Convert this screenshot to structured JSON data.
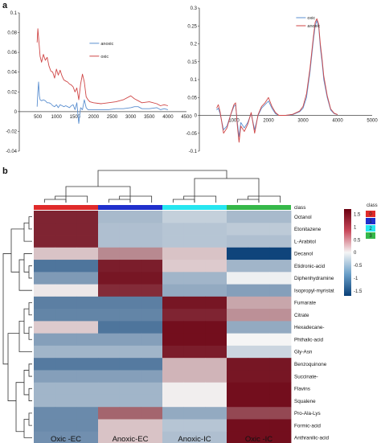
{
  "panels": {
    "a": "a",
    "b": "b"
  },
  "chart_data": [
    {
      "type": "line",
      "panel": "a-left",
      "xticks": [
        "500",
        "1000",
        "1500",
        "2000",
        "2500",
        "3000",
        "3500",
        "4000",
        "4500"
      ],
      "yticks": [
        "0.1",
        "0.08",
        "0.06",
        "0.04",
        "0.02",
        "0",
        "-0.02",
        "-0.04"
      ],
      "xlim": [
        0,
        4500
      ],
      "ylim": [
        -0.04,
        0.1
      ],
      "legend_pos": "top-right",
      "series": [
        {
          "name": "anoxic",
          "color": "#5b8fd0",
          "x": [
            480,
            500,
            520,
            540,
            560,
            600,
            650,
            700,
            750,
            800,
            850,
            900,
            950,
            1000,
            1050,
            1100,
            1150,
            1200,
            1250,
            1300,
            1350,
            1400,
            1450,
            1500,
            1550,
            1600,
            1650,
            1700,
            1750,
            1800,
            1850,
            1900,
            2000,
            2200,
            2400,
            2600,
            2800,
            3000,
            3100,
            3200,
            3300,
            3500,
            3700,
            3800,
            3900,
            4000
          ],
          "y": [
            0.005,
            0.02,
            0.03,
            0.016,
            0.012,
            0.011,
            0.012,
            0.011,
            0.009,
            0.009,
            0.008,
            0.006,
            0.005,
            0.007,
            0.004,
            0.007,
            0.006,
            0.005,
            0.006,
            0.005,
            0.004,
            0.006,
            0.007,
            0.002,
            0.009,
            -0.012,
            0.004,
            0.002,
            0.012,
            0.004,
            0.002,
            0.002,
            0.002,
            0.002,
            0.002,
            0.003,
            0.003,
            0.004,
            0.005,
            0.005,
            0.003,
            0.003,
            0.004,
            0.002,
            0.003,
            0.002
          ]
        },
        {
          "name": "oxic",
          "color": "#cf4646",
          "x": [
            480,
            500,
            520,
            540,
            560,
            600,
            650,
            700,
            750,
            800,
            850,
            900,
            950,
            1000,
            1050,
            1100,
            1150,
            1200,
            1250,
            1300,
            1350,
            1400,
            1450,
            1500,
            1550,
            1600,
            1650,
            1700,
            1750,
            1800,
            1850,
            1900,
            2000,
            2200,
            2400,
            2600,
            2800,
            3000,
            3100,
            3200,
            3300,
            3500,
            3700,
            3800,
            3900,
            4000
          ],
          "y": [
            0.07,
            0.084,
            0.075,
            0.065,
            0.056,
            0.05,
            0.058,
            0.052,
            0.055,
            0.046,
            0.041,
            0.04,
            0.034,
            0.043,
            0.037,
            0.042,
            0.036,
            0.032,
            0.031,
            0.03,
            0.028,
            0.027,
            0.025,
            0.02,
            0.024,
            0.012,
            0.028,
            0.038,
            0.03,
            0.015,
            0.012,
            0.01,
            0.009,
            0.008,
            0.009,
            0.01,
            0.012,
            0.016,
            0.013,
            0.011,
            0.009,
            0.01,
            0.008,
            0.006,
            0.007,
            0.006
          ]
        }
      ]
    },
    {
      "type": "line",
      "panel": "a-right",
      "xticks": [
        "1000",
        "2000",
        "3000",
        "4000",
        "5000"
      ],
      "yticks": [
        "0.3",
        "0.25",
        "0.2",
        "0.15",
        "0.1",
        "0.05",
        "0",
        "-0.05",
        "-0.1"
      ],
      "xlim": [
        0,
        5000
      ],
      "ylim": [
        -0.1,
        0.3
      ],
      "legend_pos": "top-center",
      "series": [
        {
          "name": "oxic",
          "color": "#5b8fd0",
          "x": [
            500,
            550,
            600,
            700,
            800,
            900,
            1000,
            1050,
            1100,
            1150,
            1200,
            1300,
            1400,
            1500,
            1600,
            1700,
            1800,
            1900,
            2000,
            2100,
            2200,
            2300,
            2500,
            2700,
            2900,
            3000,
            3100,
            3200,
            3300,
            3350,
            3400,
            3450,
            3500,
            3550,
            3600,
            3700,
            3800,
            3900,
            4000
          ],
          "y": [
            0.015,
            0.02,
            0.005,
            -0.04,
            -0.03,
            0.0,
            0.025,
            0.03,
            -0.02,
            -0.06,
            -0.02,
            -0.035,
            -0.02,
            0.005,
            -0.04,
            0.0,
            0.02,
            0.03,
            0.04,
            0.02,
            0.005,
            0.0,
            0.0,
            0.002,
            0.01,
            0.02,
            0.05,
            0.12,
            0.21,
            0.25,
            0.265,
            0.25,
            0.19,
            0.15,
            0.1,
            0.05,
            0.015,
            0.005,
            0.002
          ]
        },
        {
          "name": "anoxic",
          "color": "#cf4646",
          "x": [
            500,
            550,
            600,
            700,
            800,
            900,
            1000,
            1050,
            1100,
            1150,
            1200,
            1300,
            1400,
            1500,
            1600,
            1700,
            1800,
            1900,
            2000,
            2100,
            2200,
            2300,
            2500,
            2700,
            2900,
            3000,
            3100,
            3200,
            3300,
            3350,
            3400,
            3450,
            3500,
            3550,
            3600,
            3700,
            3800,
            3900,
            4000
          ],
          "y": [
            0.02,
            0.03,
            0.01,
            -0.05,
            -0.035,
            0.0,
            0.03,
            0.035,
            -0.03,
            -0.075,
            -0.03,
            -0.045,
            -0.025,
            0.008,
            -0.05,
            0.002,
            0.025,
            0.035,
            0.05,
            0.025,
            0.008,
            0.0,
            0.0,
            0.003,
            0.012,
            0.025,
            0.06,
            0.13,
            0.22,
            0.26,
            0.27,
            0.255,
            0.2,
            0.16,
            0.11,
            0.055,
            0.018,
            0.006,
            0.002
          ]
        }
      ]
    },
    {
      "type": "heatmap",
      "panel": "b",
      "columns": [
        "Oxic -EC",
        "Anoxic-EC",
        "Anoxic-IC",
        "Oxic -IC"
      ],
      "columns_per_group": 3,
      "class_label": "class",
      "class_colors": [
        "#e02a2a",
        "#2030cc",
        "#26e6f0",
        "#36b84a"
      ],
      "rows": [
        "Octanol",
        "Etonitazene",
        "L-Arabitol",
        "Decanol",
        "Etidronic-acid",
        "Diphenhydramine",
        "Isopropyl-myristat",
        "Fumarate",
        "Citrate",
        "Hexadecane-",
        "Phthalic-acid",
        "Gly-Asn",
        "Benzoquinone",
        "Succinate-",
        "Flavins",
        "Squalene",
        "Pro-Ala-Lys",
        "Formic-acid",
        "Anthranilic-acid"
      ],
      "values": [
        [
          1.45,
          1.45,
          1.45,
          -0.55,
          -0.55,
          -0.55,
          -0.35,
          -0.35,
          -0.35,
          -0.55,
          -0.55,
          -0.55
        ],
        [
          1.45,
          1.45,
          1.45,
          -0.5,
          -0.5,
          -0.5,
          -0.45,
          -0.45,
          -0.45,
          -0.4,
          -0.4,
          -0.4
        ],
        [
          1.45,
          1.45,
          1.45,
          -0.5,
          -0.5,
          -0.5,
          -0.45,
          -0.45,
          -0.45,
          -0.5,
          -0.5,
          -0.5
        ],
        [
          0.35,
          0.35,
          0.35,
          0.75,
          0.75,
          0.75,
          0.35,
          0.35,
          0.35,
          -1.65,
          -1.65,
          -1.65
        ],
        [
          -1.2,
          -1.2,
          -1.2,
          1.5,
          1.5,
          1.5,
          0.3,
          0.3,
          0.3,
          -0.6,
          -0.6,
          -0.6
        ],
        [
          -0.85,
          -0.85,
          -0.85,
          1.55,
          1.55,
          1.55,
          -0.6,
          -0.6,
          -0.6,
          -0.05,
          -0.05,
          -0.05
        ],
        [
          0.1,
          0.1,
          0.1,
          1.4,
          1.4,
          1.4,
          -0.7,
          -0.7,
          -0.7,
          -0.8,
          -0.8,
          -0.8
        ],
        [
          -1.1,
          -1.1,
          -1.1,
          -1.1,
          -1.1,
          -1.1,
          1.55,
          1.55,
          1.55,
          0.55,
          0.55,
          0.55
        ],
        [
          -1.05,
          -1.05,
          -1.05,
          -1.05,
          -1.05,
          -1.05,
          1.45,
          1.45,
          1.45,
          0.7,
          0.7,
          0.7
        ],
        [
          0.3,
          0.3,
          0.3,
          -1.2,
          -1.2,
          -1.2,
          1.6,
          1.6,
          1.6,
          -0.7,
          -0.7,
          -0.7
        ],
        [
          -0.8,
          -0.8,
          -0.8,
          -0.8,
          -0.8,
          -0.8,
          1.6,
          1.6,
          1.6,
          0.0,
          0.0,
          0.0
        ],
        [
          -0.6,
          -0.6,
          -0.6,
          -0.6,
          -0.6,
          -0.6,
          1.5,
          1.5,
          1.5,
          -0.3,
          -0.3,
          -0.3
        ],
        [
          -1.15,
          -1.15,
          -1.15,
          -1.15,
          -1.15,
          -1.15,
          0.45,
          0.45,
          0.45,
          1.55,
          1.55,
          1.55
        ],
        [
          -0.8,
          -0.8,
          -0.8,
          -0.8,
          -0.8,
          -0.8,
          0.45,
          0.45,
          0.45,
          1.55,
          1.55,
          1.55
        ],
        [
          -0.6,
          -0.6,
          -0.6,
          -0.6,
          -0.6,
          -0.6,
          0.05,
          0.05,
          0.05,
          1.6,
          1.6,
          1.6
        ],
        [
          -0.6,
          -0.6,
          -0.6,
          -0.6,
          -0.6,
          -0.6,
          0.05,
          0.05,
          0.05,
          1.6,
          1.6,
          1.6
        ],
        [
          -1.0,
          -1.0,
          -1.0,
          1.0,
          1.0,
          1.0,
          -0.7,
          -0.7,
          -0.7,
          1.2,
          1.2,
          1.2
        ],
        [
          -1.0,
          -1.0,
          -1.0,
          0.35,
          0.35,
          0.35,
          -0.45,
          -0.45,
          -0.45,
          1.6,
          1.6,
          1.6
        ],
        [
          -0.95,
          -0.95,
          -0.95,
          0.35,
          0.35,
          0.35,
          -0.5,
          -0.5,
          -0.5,
          1.6,
          1.6,
          1.6
        ]
      ],
      "color_scale": {
        "min": -1.7,
        "max": 1.7,
        "low": "#083f77",
        "mid": "#f5f5f5",
        "high": "#6b0010"
      },
      "colorbar_ticks": [
        "1.5",
        "1",
        "0.5",
        "0",
        "-0.5",
        "-1",
        "-1.5"
      ],
      "legend_title": "class",
      "legend_items": [
        "0",
        "1",
        "2",
        "3"
      ]
    }
  ]
}
